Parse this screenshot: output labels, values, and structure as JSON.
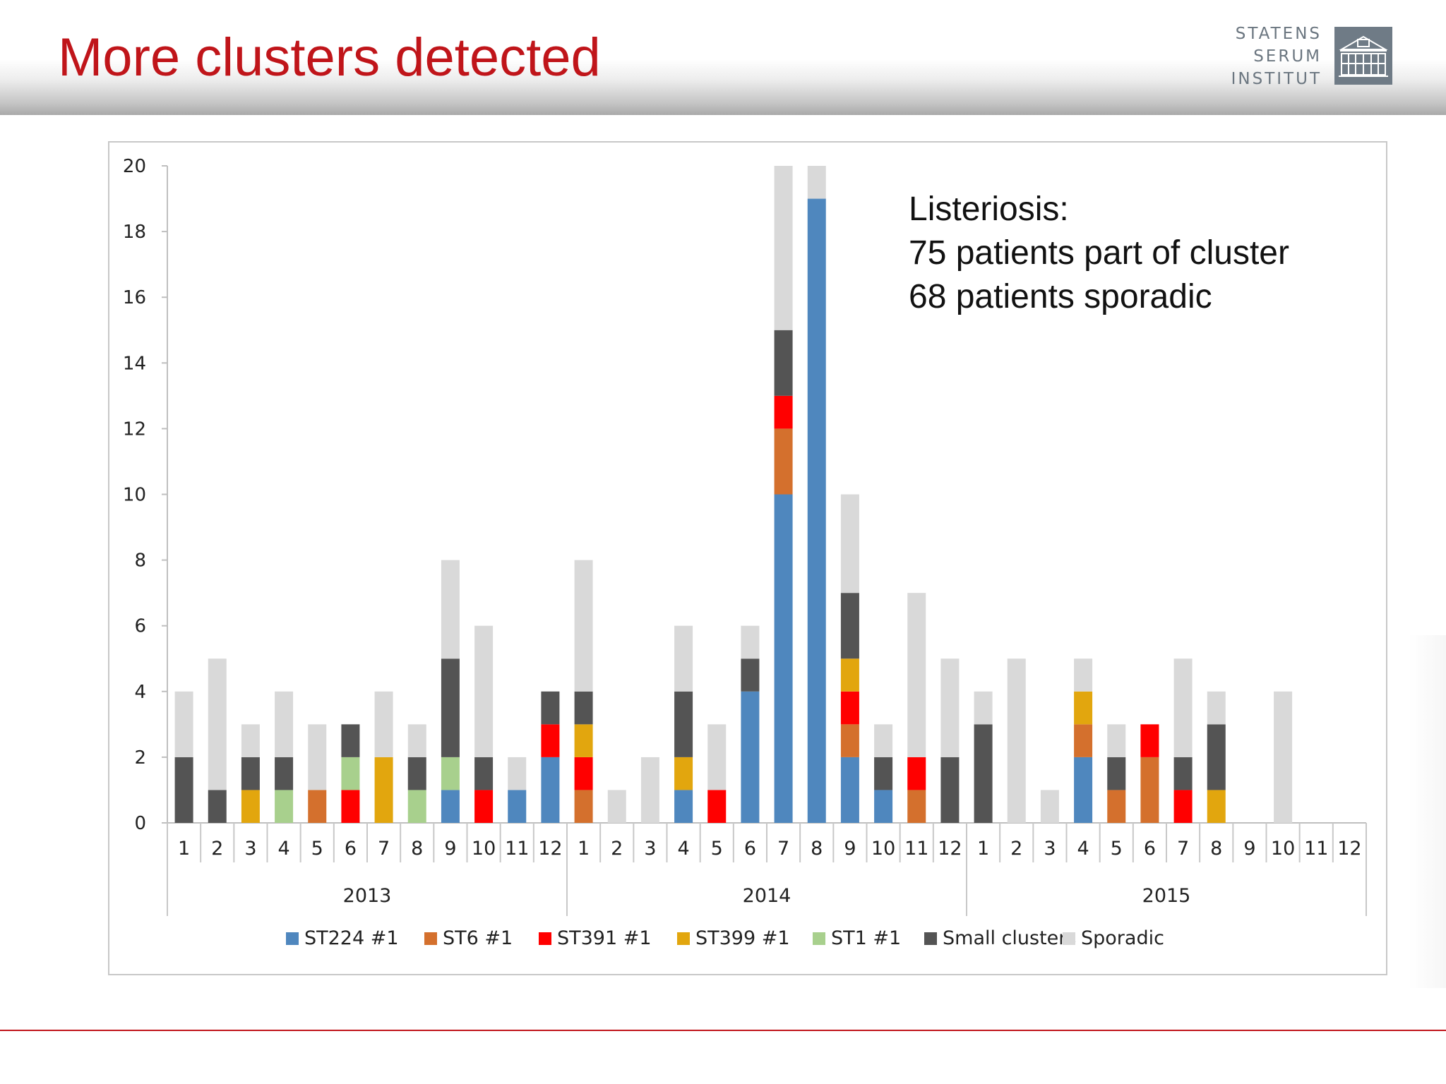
{
  "slide": {
    "title": "More clusters detected"
  },
  "logo": {
    "lines": [
      "STATENS",
      "SERUM",
      "INSTITUT"
    ],
    "icon": "institute-building-icon"
  },
  "annotation": {
    "lines": [
      "Listeriosis:",
      "75 patients part of cluster",
      "68 patients sporadic"
    ]
  },
  "chart_data": {
    "type": "bar",
    "stacked": true,
    "title": "",
    "xlabel": "",
    "ylabel": "",
    "ylim": [
      0,
      20
    ],
    "yticks": [
      0,
      2,
      4,
      6,
      8,
      10,
      12,
      14,
      16,
      18,
      20
    ],
    "grid": false,
    "legend_position": "bottom",
    "categories": [
      "1",
      "2",
      "3",
      "4",
      "5",
      "6",
      "7",
      "8",
      "9",
      "10",
      "11",
      "12",
      "1",
      "2",
      "3",
      "4",
      "5",
      "6",
      "7",
      "8",
      "9",
      "10",
      "11",
      "12",
      "1",
      "2",
      "3",
      "4",
      "5",
      "6",
      "7",
      "8",
      "9",
      "10",
      "11",
      "12"
    ],
    "groups": [
      {
        "label": "2013",
        "start": 0,
        "count": 12
      },
      {
        "label": "2014",
        "start": 12,
        "count": 12
      },
      {
        "label": "2015",
        "start": 24,
        "count": 12
      }
    ],
    "series": [
      {
        "name": "ST224 #1",
        "color": "#4f87be",
        "values": [
          0,
          0,
          0,
          0,
          0,
          0,
          0,
          0,
          1,
          0,
          1,
          2,
          0,
          0,
          0,
          1,
          0,
          4,
          10,
          19,
          2,
          1,
          0,
          0,
          0,
          0,
          0,
          2,
          0,
          0,
          0,
          0,
          0,
          0,
          0,
          0
        ]
      },
      {
        "name": "ST6 #1",
        "color": "#d4702d",
        "values": [
          0,
          0,
          0,
          0,
          1,
          0,
          0,
          0,
          0,
          0,
          0,
          0,
          1,
          0,
          0,
          0,
          0,
          0,
          2,
          0,
          1,
          0,
          1,
          0,
          0,
          0,
          0,
          1,
          1,
          2,
          0,
          0,
          0,
          0,
          0,
          0
        ]
      },
      {
        "name": "ST391 #1",
        "color": "#ff0000",
        "values": [
          0,
          0,
          0,
          0,
          0,
          1,
          0,
          0,
          0,
          1,
          0,
          1,
          1,
          0,
          0,
          0,
          1,
          0,
          1,
          0,
          1,
          0,
          1,
          0,
          0,
          0,
          0,
          0,
          0,
          1,
          1,
          0,
          0,
          0,
          0,
          0
        ]
      },
      {
        "name": "ST399 #1",
        "color": "#e2a60e",
        "values": [
          0,
          0,
          1,
          0,
          0,
          0,
          2,
          0,
          0,
          0,
          0,
          0,
          1,
          0,
          0,
          1,
          0,
          0,
          0,
          0,
          1,
          0,
          0,
          0,
          0,
          0,
          0,
          1,
          0,
          0,
          0,
          1,
          0,
          0,
          0,
          0
        ]
      },
      {
        "name": "ST1 #1",
        "color": "#a8d08d",
        "values": [
          0,
          0,
          0,
          1,
          0,
          1,
          0,
          1,
          1,
          0,
          0,
          0,
          0,
          0,
          0,
          0,
          0,
          0,
          0,
          0,
          0,
          0,
          0,
          0,
          0,
          0,
          0,
          0,
          0,
          0,
          0,
          0,
          0,
          0,
          0,
          0
        ]
      },
      {
        "name": "Small clusters",
        "color": "#545454",
        "values": [
          2,
          1,
          1,
          1,
          0,
          1,
          0,
          1,
          3,
          1,
          0,
          1,
          1,
          0,
          0,
          2,
          0,
          1,
          2,
          0,
          2,
          1,
          0,
          2,
          3,
          0,
          0,
          0,
          1,
          0,
          1,
          2,
          0,
          0,
          0,
          0
        ]
      },
      {
        "name": "Sporadic",
        "color": "#d9d9d9",
        "values": [
          2,
          4,
          1,
          2,
          2,
          0,
          2,
          1,
          3,
          4,
          1,
          0,
          4,
          1,
          2,
          2,
          2,
          1,
          5,
          1,
          3,
          1,
          5,
          3,
          1,
          5,
          1,
          1,
          1,
          0,
          3,
          1,
          0,
          4,
          0,
          0
        ]
      }
    ]
  }
}
